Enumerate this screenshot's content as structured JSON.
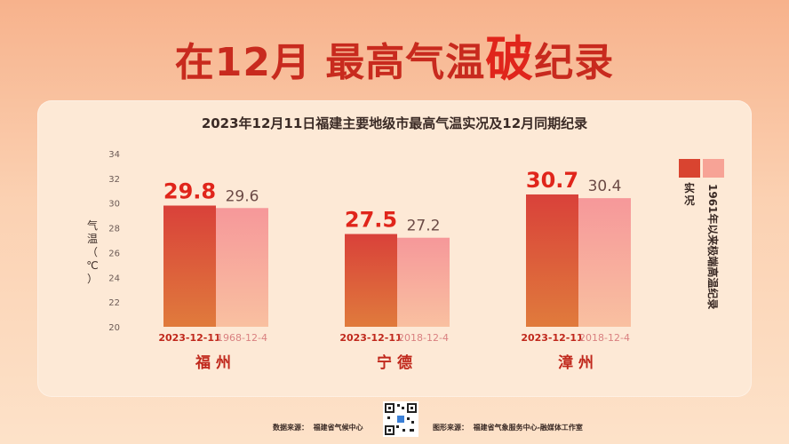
{
  "headline": {
    "part1": "在12月 最高气温",
    "part2": "破",
    "part3": "纪录"
  },
  "colors": {
    "actual": "#d94430",
    "record": "#f7a396",
    "accent": "#e0251b"
  },
  "chart_data": {
    "type": "bar",
    "title": "2023年12月11日福建主要地级市最高气温实况及12月同期纪录",
    "ylabel": "气温（℃）",
    "ylim": [
      20,
      34
    ],
    "yticks": [
      20,
      22,
      24,
      26,
      28,
      30,
      32,
      34
    ],
    "categories": [
      "福州",
      "宁德",
      "漳州"
    ],
    "series": [
      {
        "name": "实况",
        "values": [
          29.8,
          27.5,
          30.7
        ],
        "dates": [
          "2023-12-11",
          "2023-12-11",
          "2023-12-11"
        ]
      },
      {
        "name": "1961年以来极端高温纪录",
        "values": [
          29.6,
          27.2,
          30.4
        ],
        "dates": [
          "1968-12-4",
          "2018-12-4",
          "2018-12-4"
        ]
      }
    ],
    "legend_position": "right"
  },
  "footer": {
    "source_label": "数据来源：",
    "source": "福建省气候中心",
    "graphic_label": "图形来源：",
    "graphic": "福建省气象服务中心-融媒体工作室"
  }
}
